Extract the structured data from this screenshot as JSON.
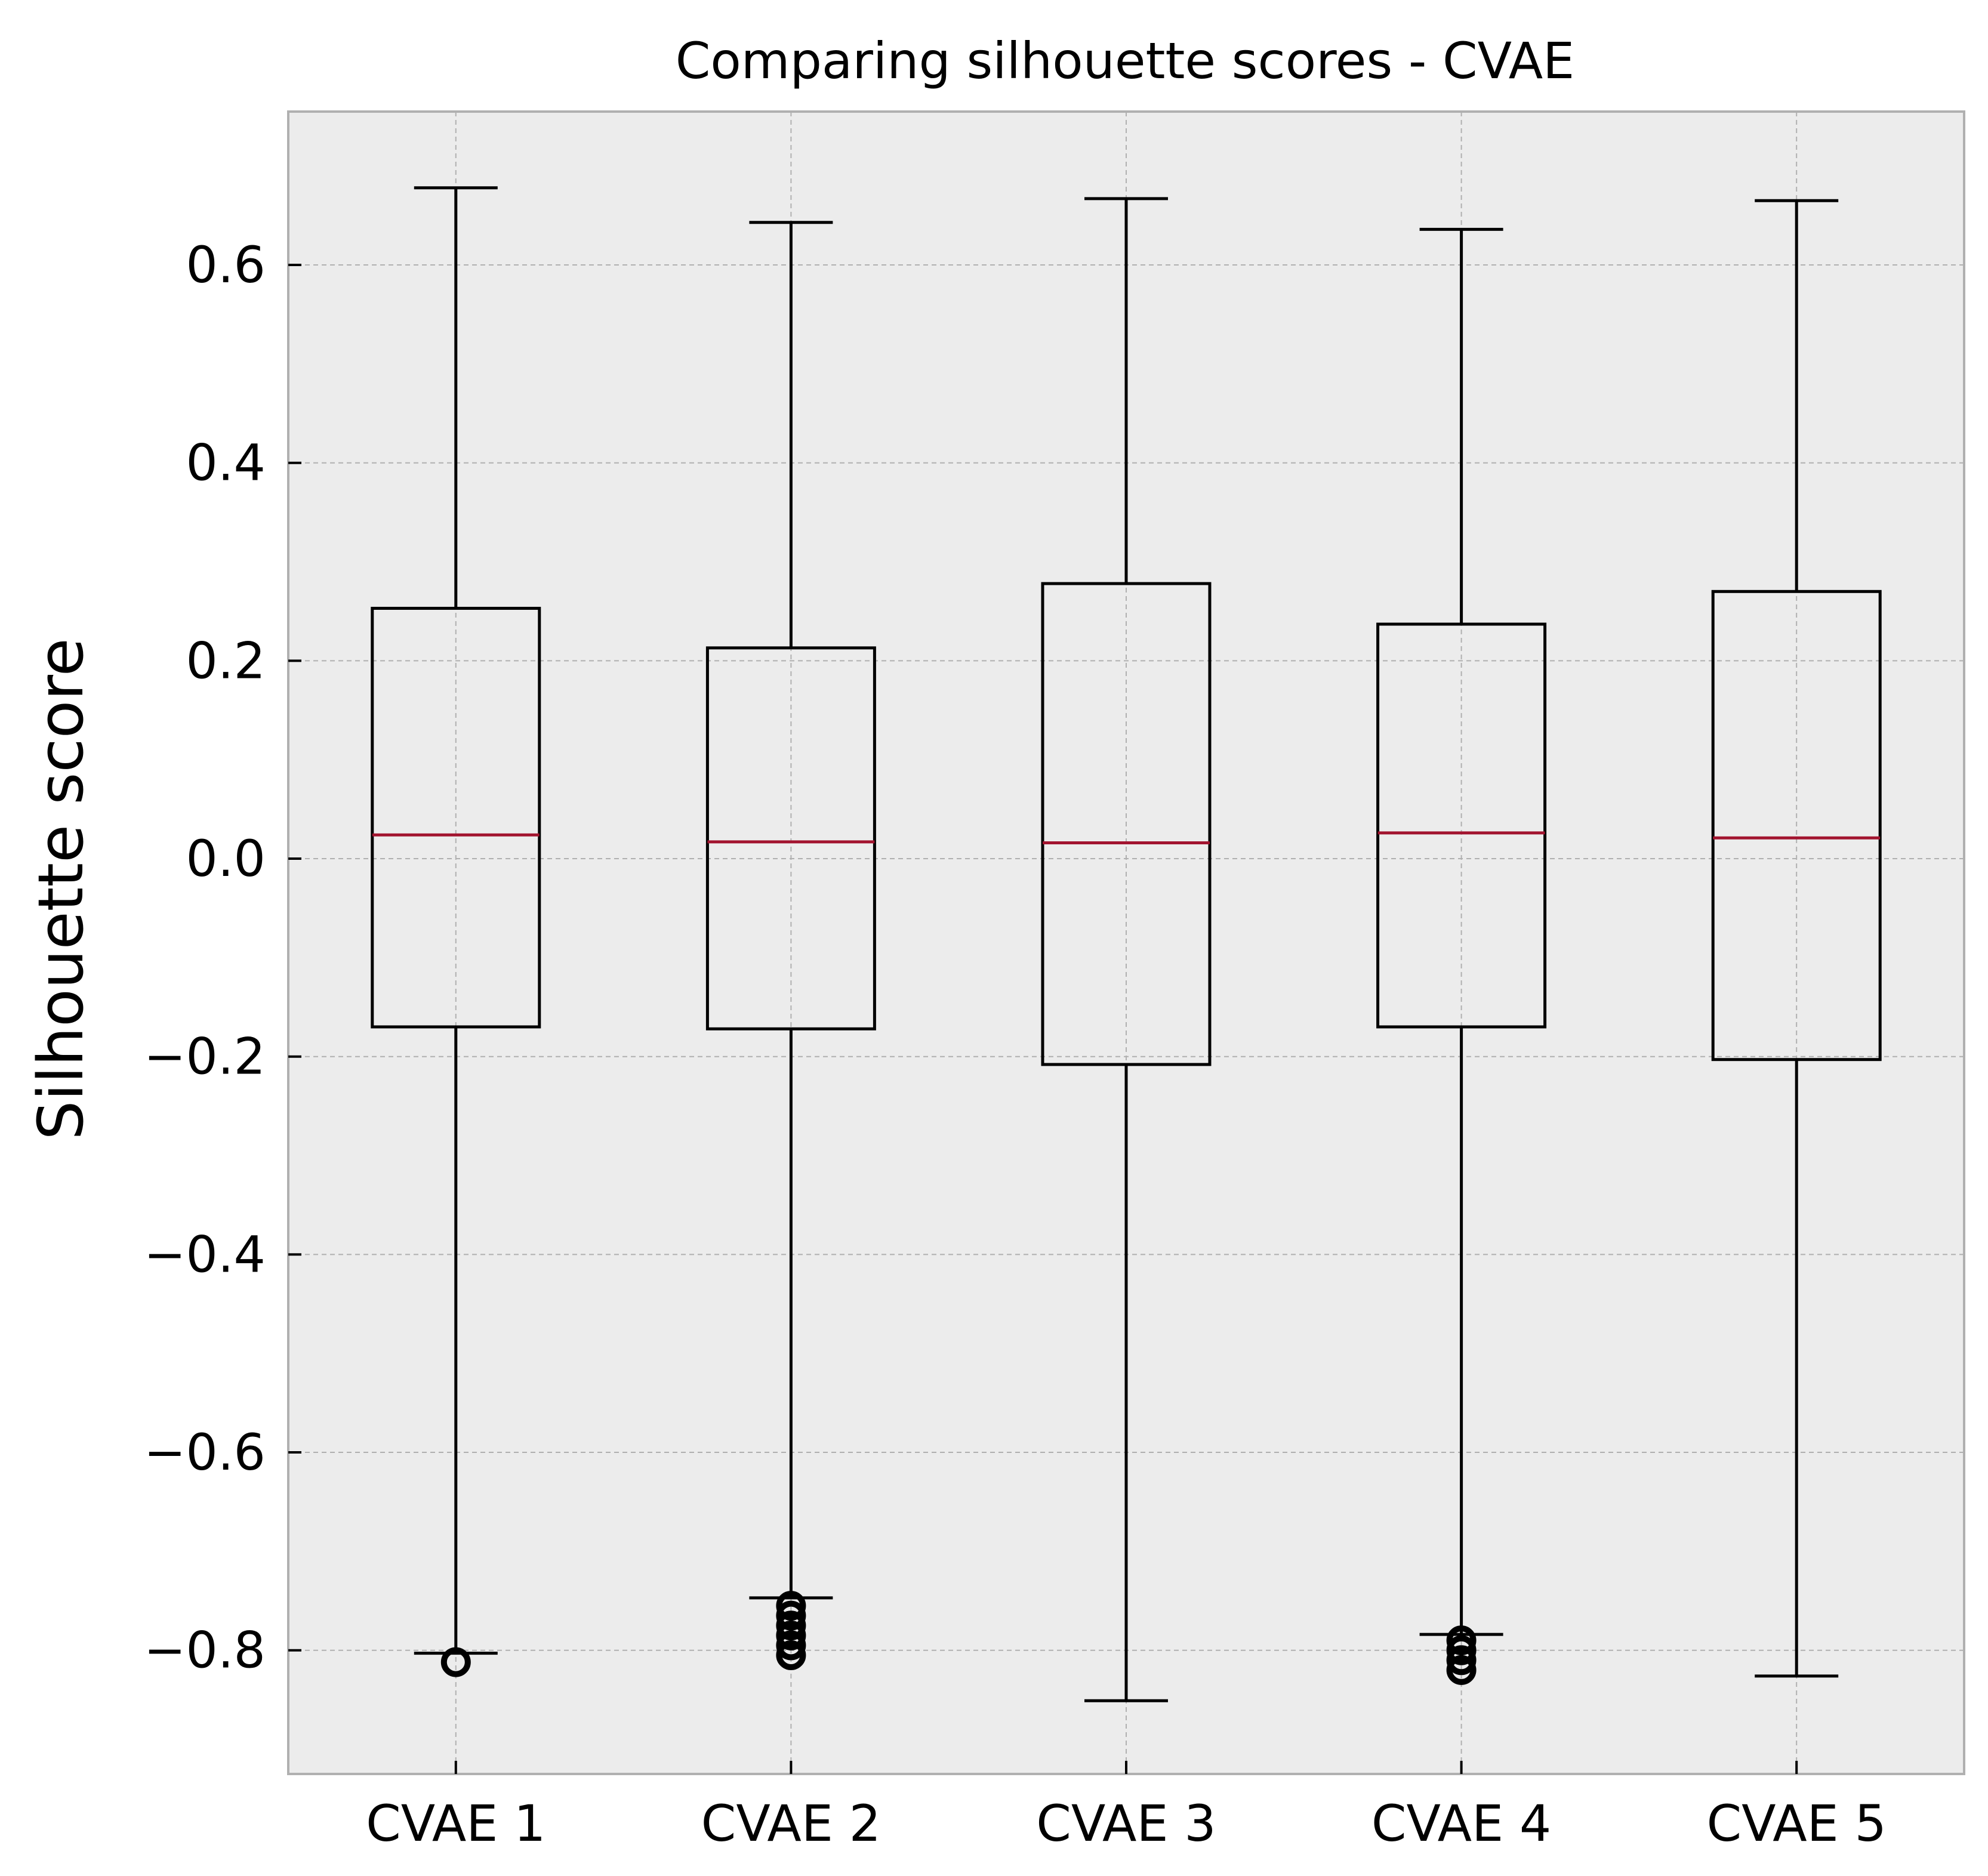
{
  "chart_data": {
    "type": "boxplot",
    "title": "Comparing silhouette scores - CVAE",
    "xlabel": "",
    "ylabel": "Silhouette score",
    "ylim": [
      -0.925,
      0.755
    ],
    "y_ticks": [
      0.6,
      0.4,
      0.2,
      0.0,
      -0.2,
      -0.4,
      -0.6,
      -0.8
    ],
    "y_tick_labels": [
      "0.6",
      "0.4",
      "0.2",
      "0.0",
      "−0.2",
      "−0.4",
      "−0.6",
      "−0.8"
    ],
    "grid": true,
    "colors": {
      "plot_background": "#ececec",
      "frame": "#b0b0b0",
      "grid": "#b0b0b0",
      "box": "#000000",
      "median": "#a2142f"
    },
    "boxes": [
      {
        "label": "CVAE 1",
        "whisker_high": 0.678,
        "q3": 0.253,
        "median": 0.024,
        "q1": -0.17,
        "whisker_low": -0.803,
        "outliers": [
          -0.812
        ]
      },
      {
        "label": "CVAE 2",
        "whisker_high": 0.643,
        "q3": 0.213,
        "median": 0.017,
        "q1": -0.172,
        "whisker_low": -0.747,
        "outliers": [
          -0.755,
          -0.765,
          -0.775,
          -0.785,
          -0.795,
          -0.805
        ]
      },
      {
        "label": "CVAE 3",
        "whisker_high": 0.667,
        "q3": 0.278,
        "median": 0.016,
        "q1": -0.208,
        "whisker_low": -0.851,
        "outliers": []
      },
      {
        "label": "CVAE 4",
        "whisker_high": 0.636,
        "q3": 0.237,
        "median": 0.026,
        "q1": -0.17,
        "whisker_low": -0.784,
        "outliers": [
          -0.79,
          -0.8,
          -0.81,
          -0.82
        ]
      },
      {
        "label": "CVAE 5",
        "whisker_high": 0.665,
        "q3": 0.27,
        "median": 0.021,
        "q1": -0.203,
        "whisker_low": -0.826,
        "outliers": []
      }
    ]
  }
}
